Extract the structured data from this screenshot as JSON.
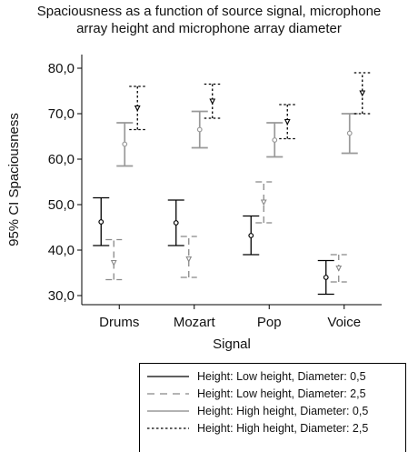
{
  "chart_data": {
    "type": "errorbar",
    "title_lines": [
      "Spaciousness as a function of source signal, microphone",
      "array height and microphone array diameter"
    ],
    "xlabel": "Signal",
    "ylabel": "95% CI Spaciousness",
    "categories": [
      "Drums",
      "Mozart",
      "Pop",
      "Voice"
    ],
    "yticks": [
      "30,0",
      "40,0",
      "50,0",
      "60,0",
      "70,0",
      "80,0"
    ],
    "ytick_values": [
      30,
      40,
      50,
      60,
      70,
      80
    ],
    "ylim": [
      28,
      83
    ],
    "legend_position": "bottom-right",
    "series": [
      {
        "name": "Height: Low height, Diameter: 0,5",
        "color": "#000000",
        "style": "solid",
        "marker": "circle",
        "means": [
          46.2,
          46.0,
          43.2,
          34.0
        ],
        "lower": [
          41.0,
          41.0,
          39.0,
          30.3
        ],
        "upper": [
          51.5,
          51.0,
          47.5,
          37.7
        ]
      },
      {
        "name": "Height: Low height, Diameter: 2,5",
        "color": "#888888",
        "style": "dashed",
        "marker": "triangle",
        "means": [
          37.2,
          38.0,
          50.5,
          36.0
        ],
        "lower": [
          33.5,
          34.0,
          46.0,
          33.0
        ],
        "upper": [
          42.3,
          43.0,
          55.0,
          39.0
        ]
      },
      {
        "name": "Height: High height, Diameter: 0,5",
        "color": "#999999",
        "style": "solid",
        "marker": "circle",
        "means": [
          63.3,
          66.5,
          64.2,
          65.7
        ],
        "lower": [
          58.5,
          62.5,
          60.5,
          61.3
        ],
        "upper": [
          68.0,
          70.5,
          68.0,
          70.0
        ]
      },
      {
        "name": "Height: High height, Diameter: 2,5",
        "color": "#000000",
        "style": "dotted",
        "marker": "triangle",
        "means": [
          71.2,
          72.7,
          68.2,
          74.5
        ],
        "lower": [
          66.5,
          69.0,
          64.5,
          70.0
        ],
        "upper": [
          76.0,
          76.5,
          72.0,
          79.0
        ]
      }
    ]
  }
}
